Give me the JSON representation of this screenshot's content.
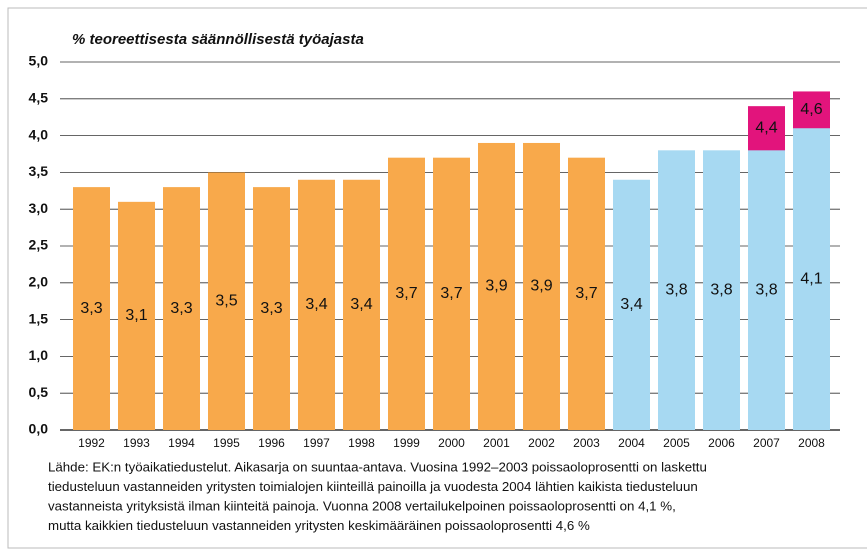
{
  "chart_data": {
    "type": "bar",
    "title": "% teoreettisesta säännöllisestä työajasta",
    "categories": [
      "1992",
      "1993",
      "1994",
      "1995",
      "1996",
      "1997",
      "1998",
      "1999",
      "2000",
      "2001",
      "2002",
      "2003",
      "2004",
      "2005",
      "2006",
      "2007",
      "2008"
    ],
    "series": [
      {
        "colors": [
          "#f8a94b",
          "#f8a94b",
          "#f8a94b",
          "#f8a94b",
          "#f8a94b",
          "#f8a94b",
          "#f8a94b",
          "#f8a94b",
          "#f8a94b",
          "#f8a94b",
          "#f8a94b",
          "#f8a94b",
          "#a7d9f2",
          "#a7d9f2",
          "#a7d9f2",
          "#a7d9f2",
          "#a7d9f2"
        ],
        "values": [
          3.3,
          3.1,
          3.3,
          3.5,
          3.3,
          3.4,
          3.4,
          3.7,
          3.7,
          3.9,
          3.9,
          3.7,
          3.4,
          3.8,
          3.8,
          3.8,
          4.1
        ],
        "value_labels": [
          "3,3",
          "3,1",
          "3,3",
          "3,5",
          "3,3",
          "3,4",
          "3,4",
          "3,7",
          "3,7",
          "3,9",
          "3,9",
          "3,7",
          "3,4",
          "3,8",
          "3,8",
          "3,8",
          "4,1"
        ]
      },
      {
        "color": "#e2147c",
        "overlay": true,
        "values": [
          null,
          null,
          null,
          null,
          null,
          null,
          null,
          null,
          null,
          null,
          null,
          null,
          null,
          null,
          null,
          4.4,
          4.6
        ],
        "value_labels": [
          null,
          null,
          null,
          null,
          null,
          null,
          null,
          null,
          null,
          null,
          null,
          null,
          null,
          null,
          null,
          "4,4",
          "4,6"
        ]
      }
    ],
    "ylim": [
      0,
      5
    ],
    "yticks": [
      {
        "value": 0,
        "label": "0,0"
      },
      {
        "value": 0.5,
        "label": "0,5"
      },
      {
        "value": 1,
        "label": "1,0"
      },
      {
        "value": 1.5,
        "label": "1,5"
      },
      {
        "value": 2,
        "label": "2,0"
      },
      {
        "value": 2.5,
        "label": "2,5"
      },
      {
        "value": 3,
        "label": "3,0"
      },
      {
        "value": 3.5,
        "label": "3,5"
      },
      {
        "value": 4,
        "label": "4,0"
      },
      {
        "value": 4.5,
        "label": "4,5"
      },
      {
        "value": 5,
        "label": "5,0"
      }
    ],
    "grid": true,
    "note": [
      "Lähde: EK:n työaikatiedustelut. Aikasarja on suuntaa-antava. Vuosina 1992–2003 poissaoloprosentti on laskettu",
      "tiedusteluun vastanneiden yritysten toimialojen kiinteillä painoilla ja vuodesta 2004 lähtien kaikista tiedusteluun",
      "vastanneista yrityksistä ilman kiinteitä painoja. Vuonna 2008 vertailukelpoinen poissaoloprosentti on 4,1 %,",
      "mutta kaikkien tiedusteluun vastanneiden yritysten keskimääräinen poissaoloprosentti 4,6 %"
    ]
  }
}
